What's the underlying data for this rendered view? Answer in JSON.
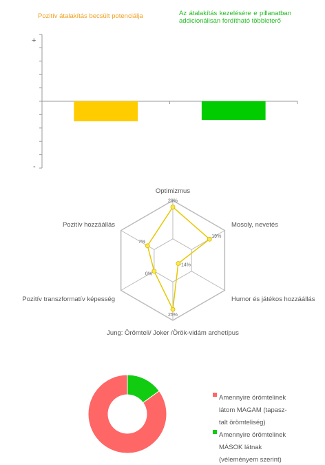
{
  "chart_data": [
    {
      "type": "bar",
      "categories": [
        "Pozitív átalakítás becsült potenciálja",
        "Az átalakítás kezelésére e pillanatban addicionálisan fordítható többleterő"
      ],
      "values": [
        -0.3,
        -0.28
      ],
      "colors": [
        "#FFCC00",
        "#00CC00"
      ],
      "y_top_label": "+",
      "y_bottom_label": "-",
      "ylim": [
        -1,
        1
      ]
    },
    {
      "type": "radar",
      "axes": [
        "Optimizmus",
        "Mosoly, nevetés",
        "Humor és játékos hozzáállás",
        "Jung: Örömteli/ Joker /Örök-vidám archetípus",
        "Pozitív transzformatív képesség",
        "Pozitív hozzáállás"
      ],
      "values": [
        29,
        19,
        -14,
        25,
        0,
        7
      ],
      "value_labels": [
        "29%",
        "19%",
        "-14%",
        "25%",
        "0%",
        "7%"
      ],
      "series_color": "#E6C800",
      "grid_color": "#BBBBBB"
    },
    {
      "type": "pie",
      "donut": true,
      "slices": [
        {
          "label": "Amennyire örömtelinek látom MAGAM (tapasz-talt örömteliség)",
          "value": 85,
          "color": "#FF6666"
        },
        {
          "label": "Amennyire örömtelinek MÁSOK látnak (véleményem szerint)",
          "value": 15,
          "color": "#11CC11"
        }
      ],
      "legend_position": "right"
    }
  ]
}
